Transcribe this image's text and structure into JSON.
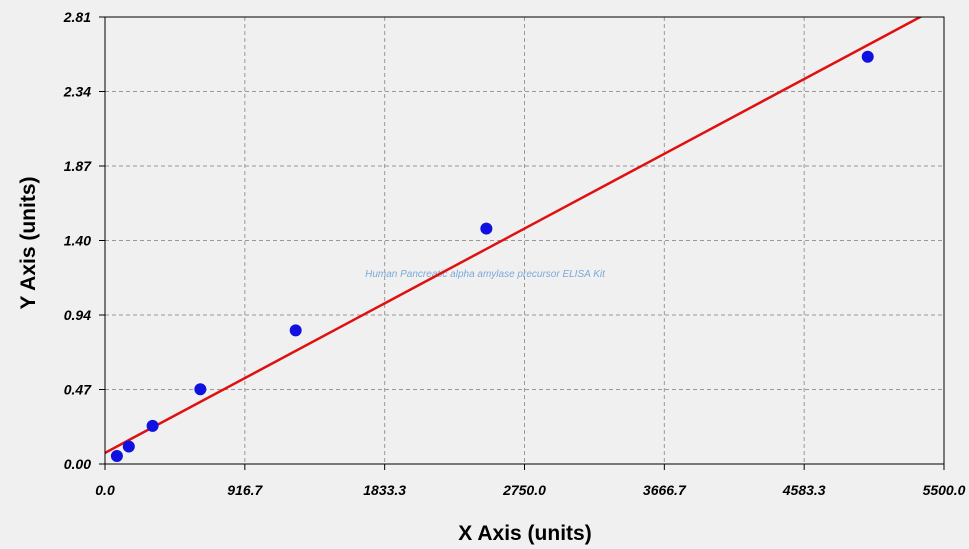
{
  "chart_data": {
    "type": "scatter",
    "title": "",
    "xlabel": "X Axis (units)",
    "ylabel": "Y Axis (units)",
    "xlim": [
      0,
      5500
    ],
    "ylim": [
      0,
      2.81
    ],
    "x_ticks": [
      "0.0",
      "916.7",
      "1833.3",
      "2750.0",
      "3666.7",
      "4583.3",
      "5500.0"
    ],
    "y_ticks": [
      "0.00",
      "0.47",
      "0.94",
      "1.40",
      "1.87",
      "2.34",
      "2.81"
    ],
    "grid": true,
    "watermark": "Human Pancreatic alpha amylase precursor ELISA Kit",
    "series": [
      {
        "kind": "points",
        "x": [
          78,
          156,
          312,
          625,
          1250,
          2500,
          5000
        ],
        "y": [
          0.05,
          0.11,
          0.24,
          0.47,
          0.84,
          1.48,
          2.56
        ]
      },
      {
        "kind": "fit-line",
        "x": [
          0,
          5500
        ],
        "y": [
          0.07,
          2.89
        ]
      }
    ],
    "colors": {
      "points": "#1010e0",
      "fit_line": "#e01010",
      "grid": "#999999",
      "background": "#f0f0f0",
      "watermark": "#7aaad8"
    }
  }
}
